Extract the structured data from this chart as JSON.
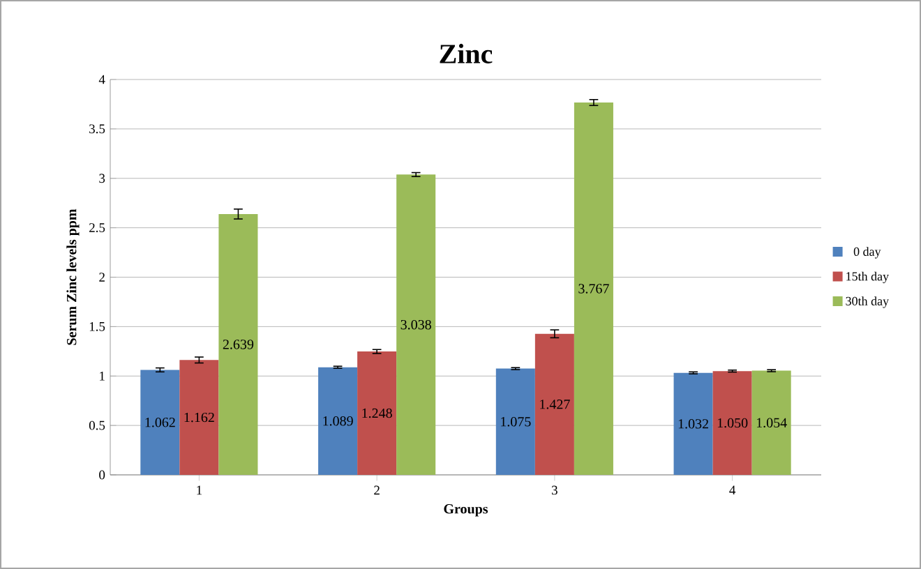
{
  "chart_data": {
    "type": "bar",
    "title": "Zinc",
    "xlabel": "Groups",
    "ylabel": "Serum Zinc levels ppm",
    "categories": [
      "1",
      "2",
      "3",
      "4"
    ],
    "ylim": [
      0,
      4
    ],
    "yticks": [
      0,
      0.5,
      1,
      1.5,
      2,
      2.5,
      3,
      3.5,
      4
    ],
    "grid": "y",
    "legend": "right",
    "series": [
      {
        "name": "0 day",
        "color": "#4f81bd",
        "values": [
          1.062,
          1.089,
          1.075,
          1.032
        ],
        "errors": [
          0.02,
          0.01,
          0.01,
          0.01
        ],
        "value_labels": [
          "1.062",
          "1.089",
          "1.075",
          "1.032"
        ]
      },
      {
        "name": "15th day",
        "color": "#c0504d",
        "values": [
          1.162,
          1.248,
          1.427,
          1.05
        ],
        "errors": [
          0.03,
          0.02,
          0.04,
          0.01
        ],
        "value_labels": [
          "1.162",
          "1.248",
          "1.427",
          "1.050"
        ]
      },
      {
        "name": "30th day",
        "color": "#9bbb59",
        "values": [
          2.639,
          3.038,
          3.767,
          1.054
        ],
        "errors": [
          0.05,
          0.02,
          0.03,
          0.01
        ],
        "value_labels": [
          "2.639",
          "3.038",
          "3.767",
          "1.054"
        ]
      }
    ]
  }
}
